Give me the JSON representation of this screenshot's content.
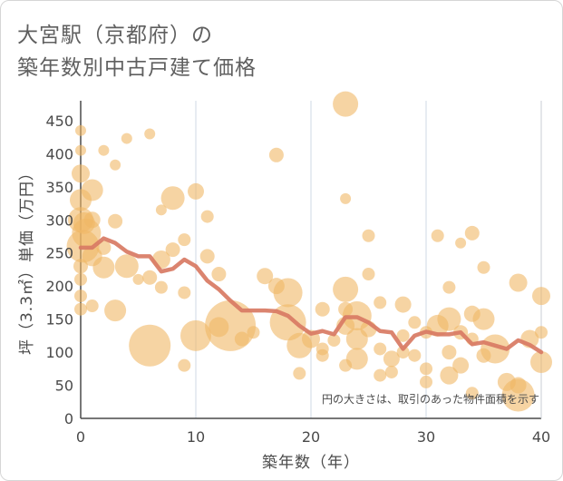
{
  "title_lines": [
    "大宮駅（京都府）の",
    "築年数別中古戸建て価格"
  ],
  "note": "円の大きさは、取引のあった物件面積を示す",
  "colors": {
    "bubble": "#f0b865",
    "trend": "#d87a63",
    "grid": "#cfd8e6",
    "axis": "#4a4a4a"
  },
  "chart_data": {
    "type": "scatter",
    "title": "大宮駅（京都府）の築年数別中古戸建て価格",
    "xlabel": "築年数（年）",
    "ylabel": "坪（3.3㎡）単価（万円）",
    "xlim": [
      0,
      40
    ],
    "ylim": [
      0,
      480
    ],
    "x_ticks": [
      0,
      10,
      20,
      30,
      40
    ],
    "y_ticks": [
      0,
      50,
      100,
      150,
      200,
      250,
      300,
      350,
      400,
      450
    ],
    "grid": "x-only",
    "size_meaning": "取引のあった物件面積",
    "points": [
      {
        "x": 0,
        "y": 435,
        "s": 6
      },
      {
        "x": 0,
        "y": 405,
        "s": 6
      },
      {
        "x": 0,
        "y": 370,
        "s": 10
      },
      {
        "x": 0,
        "y": 330,
        "s": 12
      },
      {
        "x": 0,
        "y": 300,
        "s": 14
      },
      {
        "x": 0.3,
        "y": 295,
        "s": 12
      },
      {
        "x": 0.5,
        "y": 280,
        "s": 16
      },
      {
        "x": 1,
        "y": 345,
        "s": 12
      },
      {
        "x": 1,
        "y": 300,
        "s": 9
      },
      {
        "x": 0.2,
        "y": 260,
        "s": 18
      },
      {
        "x": 1,
        "y": 245,
        "s": 11
      },
      {
        "x": 0,
        "y": 230,
        "s": 8
      },
      {
        "x": 0,
        "y": 210,
        "s": 7
      },
      {
        "x": 0,
        "y": 185,
        "s": 7
      },
      {
        "x": 0,
        "y": 165,
        "s": 7
      },
      {
        "x": 1,
        "y": 170,
        "s": 7
      },
      {
        "x": 2,
        "y": 405,
        "s": 6
      },
      {
        "x": 3,
        "y": 383,
        "s": 6
      },
      {
        "x": 4,
        "y": 423,
        "s": 6
      },
      {
        "x": 6,
        "y": 430,
        "s": 6
      },
      {
        "x": 3,
        "y": 298,
        "s": 8
      },
      {
        "x": 2,
        "y": 258,
        "s": 8
      },
      {
        "x": 2,
        "y": 228,
        "s": 12
      },
      {
        "x": 4,
        "y": 230,
        "s": 13
      },
      {
        "x": 5,
        "y": 210,
        "s": 6
      },
      {
        "x": 6,
        "y": 213,
        "s": 8
      },
      {
        "x": 3,
        "y": 163,
        "s": 12
      },
      {
        "x": 6,
        "y": 110,
        "s": 23
      },
      {
        "x": 7,
        "y": 315,
        "s": 6
      },
      {
        "x": 8,
        "y": 333,
        "s": 13
      },
      {
        "x": 8,
        "y": 255,
        "s": 8
      },
      {
        "x": 7,
        "y": 240,
        "s": 10
      },
      {
        "x": 9,
        "y": 270,
        "s": 7
      },
      {
        "x": 7,
        "y": 198,
        "s": 7
      },
      {
        "x": 9,
        "y": 190,
        "s": 7
      },
      {
        "x": 10,
        "y": 343,
        "s": 9
      },
      {
        "x": 11,
        "y": 305,
        "s": 7
      },
      {
        "x": 11,
        "y": 245,
        "s": 8
      },
      {
        "x": 12,
        "y": 218,
        "s": 8
      },
      {
        "x": 10,
        "y": 125,
        "s": 17
      },
      {
        "x": 9,
        "y": 80,
        "s": 7
      },
      {
        "x": 12,
        "y": 138,
        "s": 11
      },
      {
        "x": 13,
        "y": 140,
        "s": 28
      },
      {
        "x": 14,
        "y": 120,
        "s": 8
      },
      {
        "x": 15,
        "y": 130,
        "s": 7
      },
      {
        "x": 16,
        "y": 215,
        "s": 9
      },
      {
        "x": 17,
        "y": 200,
        "s": 9
      },
      {
        "x": 17,
        "y": 398,
        "s": 8
      },
      {
        "x": 18,
        "y": 190,
        "s": 16
      },
      {
        "x": 18,
        "y": 145,
        "s": 20
      },
      {
        "x": 19,
        "y": 110,
        "s": 14
      },
      {
        "x": 19,
        "y": 68,
        "s": 7
      },
      {
        "x": 20,
        "y": 120,
        "s": 10
      },
      {
        "x": 21,
        "y": 165,
        "s": 8
      },
      {
        "x": 21,
        "y": 105,
        "s": 7
      },
      {
        "x": 21,
        "y": 95,
        "s": 7
      },
      {
        "x": 22,
        "y": 118,
        "s": 7
      },
      {
        "x": 23,
        "y": 475,
        "s": 14
      },
      {
        "x": 23,
        "y": 332,
        "s": 6
      },
      {
        "x": 23,
        "y": 195,
        "s": 14
      },
      {
        "x": 23,
        "y": 165,
        "s": 8
      },
      {
        "x": 23,
        "y": 140,
        "s": 10
      },
      {
        "x": 23,
        "y": 80,
        "s": 7
      },
      {
        "x": 24,
        "y": 155,
        "s": 16
      },
      {
        "x": 24,
        "y": 120,
        "s": 12
      },
      {
        "x": 24,
        "y": 90,
        "s": 12
      },
      {
        "x": 25,
        "y": 276,
        "s": 7
      },
      {
        "x": 25,
        "y": 218,
        "s": 7
      },
      {
        "x": 25,
        "y": 135,
        "s": 9
      },
      {
        "x": 26,
        "y": 175,
        "s": 7
      },
      {
        "x": 26,
        "y": 105,
        "s": 7
      },
      {
        "x": 26,
        "y": 65,
        "s": 7
      },
      {
        "x": 27,
        "y": 90,
        "s": 9
      },
      {
        "x": 27,
        "y": 70,
        "s": 7
      },
      {
        "x": 28,
        "y": 172,
        "s": 9
      },
      {
        "x": 28,
        "y": 125,
        "s": 7
      },
      {
        "x": 28,
        "y": 100,
        "s": 7
      },
      {
        "x": 29,
        "y": 145,
        "s": 7
      },
      {
        "x": 29,
        "y": 95,
        "s": 7
      },
      {
        "x": 30,
        "y": 130,
        "s": 7
      },
      {
        "x": 30,
        "y": 75,
        "s": 7
      },
      {
        "x": 30,
        "y": 55,
        "s": 7
      },
      {
        "x": 31,
        "y": 276,
        "s": 7
      },
      {
        "x": 31,
        "y": 140,
        "s": 12
      },
      {
        "x": 32,
        "y": 198,
        "s": 7
      },
      {
        "x": 32,
        "y": 150,
        "s": 13
      },
      {
        "x": 32,
        "y": 100,
        "s": 8
      },
      {
        "x": 32,
        "y": 65,
        "s": 10
      },
      {
        "x": 33,
        "y": 265,
        "s": 6
      },
      {
        "x": 33,
        "y": 130,
        "s": 8
      },
      {
        "x": 33,
        "y": 80,
        "s": 9
      },
      {
        "x": 34,
        "y": 280,
        "s": 8
      },
      {
        "x": 34,
        "y": 158,
        "s": 9
      },
      {
        "x": 34,
        "y": 120,
        "s": 7
      },
      {
        "x": 34,
        "y": 38,
        "s": 7
      },
      {
        "x": 35,
        "y": 228,
        "s": 7
      },
      {
        "x": 35,
        "y": 150,
        "s": 12
      },
      {
        "x": 35,
        "y": 95,
        "s": 8
      },
      {
        "x": 36,
        "y": 105,
        "s": 16
      },
      {
        "x": 37,
        "y": 55,
        "s": 10
      },
      {
        "x": 38,
        "y": 205,
        "s": 10
      },
      {
        "x": 38,
        "y": 50,
        "s": 9
      },
      {
        "x": 38,
        "y": 35,
        "s": 18
      },
      {
        "x": 39,
        "y": 120,
        "s": 10
      },
      {
        "x": 40,
        "y": 185,
        "s": 10
      },
      {
        "x": 40,
        "y": 130,
        "s": 7
      },
      {
        "x": 40,
        "y": 85,
        "s": 12
      }
    ],
    "trend": {
      "x": [
        0,
        1,
        2,
        3,
        4,
        5,
        6,
        7,
        8,
        9,
        10,
        11,
        12,
        13,
        14,
        15,
        16,
        17,
        18,
        19,
        20,
        21,
        22,
        23,
        24,
        25,
        26,
        27,
        28,
        29,
        30,
        31,
        32,
        33,
        34,
        35,
        36,
        37,
        38,
        39,
        40
      ],
      "y": [
        258,
        258,
        272,
        265,
        252,
        245,
        245,
        222,
        226,
        240,
        230,
        208,
        195,
        178,
        163,
        163,
        163,
        162,
        155,
        140,
        128,
        132,
        127,
        153,
        153,
        145,
        132,
        130,
        105,
        125,
        131,
        127,
        127,
        130,
        112,
        115,
        110,
        105,
        118,
        111,
        100
      ]
    }
  }
}
